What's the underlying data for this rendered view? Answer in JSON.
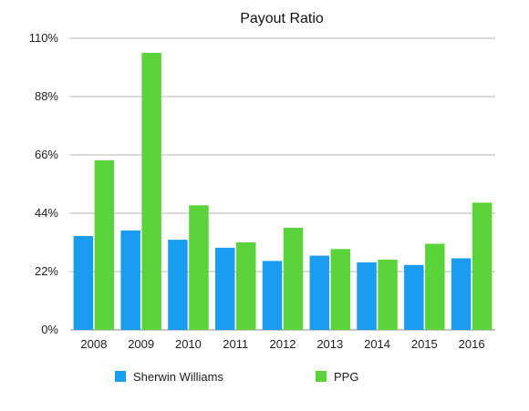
{
  "chart_data": {
    "type": "bar",
    "title": "Payout Ratio",
    "xlabel": "",
    "ylabel": "",
    "categories": [
      "2008",
      "2009",
      "2010",
      "2011",
      "2012",
      "2013",
      "2014",
      "2015",
      "2016"
    ],
    "series": [
      {
        "name": "Sherwin Williams",
        "color": "#1a9cf0",
        "values": [
          35.4,
          37.5,
          34.0,
          31.0,
          26.0,
          28.0,
          25.5,
          24.5,
          27.0
        ]
      },
      {
        "name": "PPG",
        "color": "#5bd43c",
        "values": [
          64.0,
          104.5,
          47.0,
          33.0,
          38.5,
          30.5,
          26.5,
          32.5,
          48.0
        ]
      }
    ],
    "ylim": [
      0,
      110
    ],
    "yticks": [
      0,
      22,
      44,
      66,
      88,
      110
    ],
    "ytick_labels": [
      "0%",
      "22%",
      "44%",
      "66%",
      "88%",
      "110%"
    ],
    "grid": true,
    "legend_position": "bottom"
  }
}
